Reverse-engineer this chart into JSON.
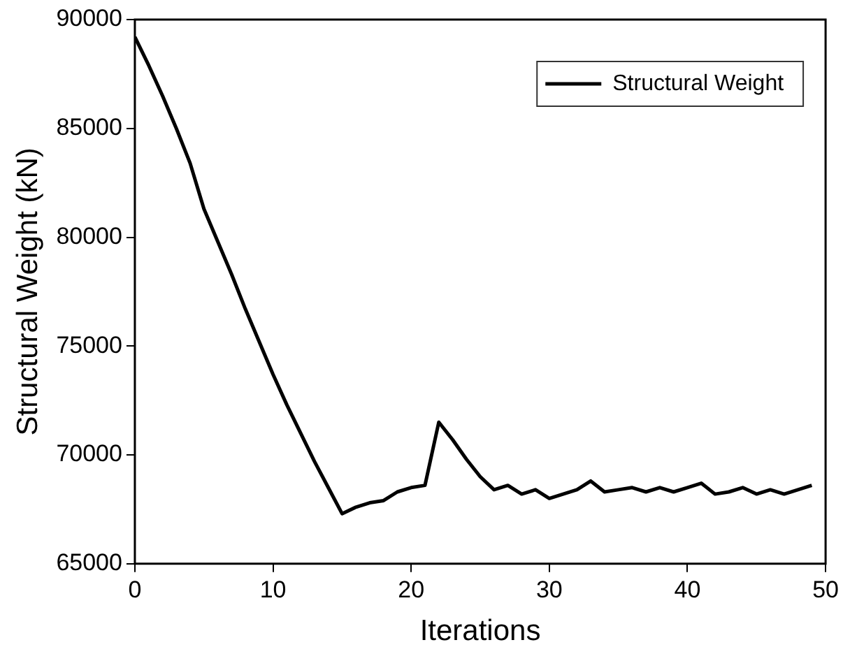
{
  "chart_data": {
    "type": "line",
    "xlabel": "Iterations",
    "ylabel": "Structural Weight (kN)",
    "x": [
      0,
      1,
      2,
      3,
      4,
      5,
      6,
      7,
      8,
      9,
      10,
      11,
      12,
      13,
      14,
      15,
      16,
      17,
      18,
      19,
      20,
      21,
      22,
      23,
      24,
      25,
      26,
      27,
      28,
      29,
      30,
      31,
      32,
      33,
      34,
      35,
      36,
      37,
      38,
      39,
      40,
      41,
      42,
      43,
      44,
      45,
      46,
      47,
      48,
      49
    ],
    "series": [
      {
        "name": "Structural Weight",
        "color": "#000000",
        "values": [
          89200,
          87900,
          86500,
          85000,
          83400,
          81300,
          79800,
          78300,
          76700,
          75200,
          73700,
          72300,
          71000,
          69700,
          68500,
          67300,
          67600,
          67800,
          67900,
          68300,
          68500,
          68600,
          71500,
          70700,
          69800,
          69000,
          68400,
          68600,
          68200,
          68400,
          68000,
          68200,
          68400,
          68800,
          68300,
          68400,
          68500,
          68300,
          68500,
          68300,
          68500,
          68700,
          68200,
          68300,
          68500,
          68200,
          68400,
          68200,
          68400,
          68600
        ]
      }
    ],
    "xlim": [
      0,
      50
    ],
    "xticks": [
      0,
      10,
      20,
      30,
      40,
      50
    ],
    "ylim": [
      65000,
      90000
    ],
    "yticks": [
      65000,
      70000,
      75000,
      80000,
      85000,
      90000
    ],
    "grid": false,
    "legend": "top right",
    "marker": "none",
    "line_style": "solid"
  }
}
